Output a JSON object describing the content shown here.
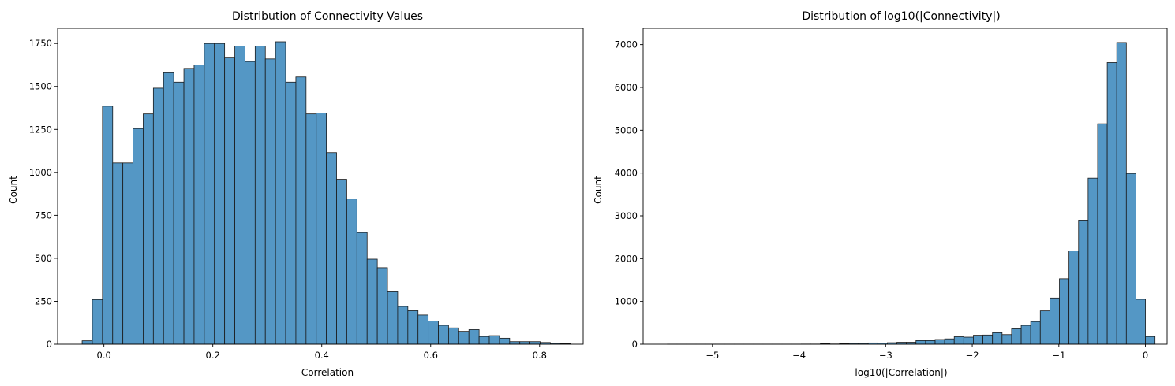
{
  "chart_data": [
    {
      "type": "bar",
      "title": "Distribution of Connectivity Values",
      "xlabel": "Correlation",
      "ylabel": "Count",
      "xlim": [
        -0.085,
        0.88
      ],
      "ylim": [
        0,
        1838
      ],
      "xticks": [
        0.0,
        0.2,
        0.4,
        0.6,
        0.8
      ],
      "xtick_labels": [
        "0.0",
        "0.2",
        "0.4",
        "0.6",
        "0.8"
      ],
      "yticks": [
        0,
        250,
        500,
        750,
        1000,
        1250,
        1500,
        1750
      ],
      "ytick_labels": [
        "0",
        "250",
        "500",
        "750",
        "1000",
        "1250",
        "1500",
        "1750"
      ],
      "bin_start": -0.04,
      "bin_width": 0.01869,
      "values": [
        20,
        260,
        1385,
        1055,
        1055,
        1255,
        1340,
        1490,
        1580,
        1525,
        1605,
        1625,
        1750,
        1750,
        1670,
        1735,
        1645,
        1735,
        1660,
        1760,
        1525,
        1555,
        1340,
        1345,
        1115,
        960,
        845,
        650,
        495,
        445,
        305,
        220,
        195,
        170,
        135,
        110,
        95,
        75,
        85,
        45,
        50,
        35,
        15,
        15,
        15,
        10,
        5,
        3
      ]
    },
    {
      "type": "bar",
      "title": "Distribution of log10(|Connectivity|)",
      "xlabel": "log10(|Correlation|)",
      "ylabel": "Count",
      "xlim": [
        -5.8,
        0.25
      ],
      "ylim": [
        0,
        7380
      ],
      "xticks": [
        -5,
        -4,
        -3,
        -2,
        -1,
        0
      ],
      "xtick_labels": [
        "−5",
        "−4",
        "−3",
        "−2",
        "−1",
        "0"
      ],
      "yticks": [
        0,
        1000,
        2000,
        3000,
        4000,
        5000,
        6000,
        7000
      ],
      "ytick_labels": [
        "0",
        "1000",
        "2000",
        "3000",
        "4000",
        "5000",
        "6000",
        "7000"
      ],
      "bin_start": -5.52,
      "bin_width": 0.1104,
      "values": [
        2,
        2,
        2,
        2,
        2,
        2,
        2,
        2,
        2,
        2,
        2,
        2,
        2,
        2,
        3,
        3,
        15,
        5,
        15,
        20,
        20,
        30,
        25,
        35,
        45,
        45,
        85,
        85,
        110,
        125,
        175,
        165,
        210,
        215,
        270,
        225,
        360,
        440,
        530,
        780,
        1080,
        1530,
        2180,
        2900,
        3880,
        5150,
        6580,
        7050,
        3990,
        1050,
        180
      ]
    }
  ]
}
